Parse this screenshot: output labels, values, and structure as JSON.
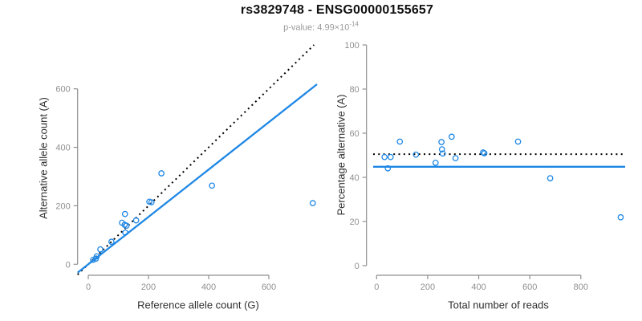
{
  "header": {
    "title": "rs3829748 - ENSG00000155657",
    "pvalue_label": "p-value: 4.99×10",
    "pvalue_exponent": "-14"
  },
  "colors": {
    "accent_blue": "#1E87E5",
    "line_black": "#000000",
    "axis_gray": "#8F8F8F",
    "tick_text_gray": "#909090",
    "axis_title_color": "#2E2E2E",
    "title_color": "#111111",
    "subtitle_gray": "#9B9B9B",
    "background": "#FFFFFF"
  },
  "chart_data": [
    {
      "type": "scatter",
      "panel": "left",
      "xlabel": "Reference allele count (G)",
      "ylabel": "Alternative allele count (A)",
      "xticks": [
        0,
        200,
        400,
        600
      ],
      "yticks": [
        0,
        200,
        400,
        600
      ],
      "xlim": [
        0,
        600
      ],
      "ylim": [
        0,
        600
      ],
      "grid": false,
      "legend": "none",
      "points": [
        [
          16,
          15
        ],
        [
          25,
          19
        ],
        [
          28,
          27
        ],
        [
          40,
          51
        ],
        [
          77,
          77
        ],
        [
          123,
          108
        ],
        [
          112,
          142
        ],
        [
          121,
          135
        ],
        [
          127,
          132
        ],
        [
          122,
          172
        ],
        [
          159,
          150
        ],
        [
          203,
          214
        ],
        [
          210,
          212
        ],
        [
          243,
          311
        ],
        [
          411,
          269
        ],
        [
          746,
          209
        ]
      ],
      "lines": [
        {
          "name": "identity-line",
          "style": "dotted",
          "color": "#000000",
          "slope": 1,
          "intercept": 0
        },
        {
          "name": "fit-line",
          "style": "solid",
          "color": "#1E87E5",
          "slope": 0.81,
          "intercept": 0
        }
      ]
    },
    {
      "type": "scatter",
      "panel": "right",
      "xlabel": "Total number of reads",
      "ylabel": "Percentage alternative (A)",
      "xticks": [
        0,
        200,
        400,
        600,
        800
      ],
      "yticks": [
        0,
        20,
        40,
        60,
        80,
        100
      ],
      "xlim": [
        0,
        800
      ],
      "ylim": [
        0,
        100
      ],
      "grid": false,
      "legend": "none",
      "points": [
        [
          31,
          49.2
        ],
        [
          44,
          44.1
        ],
        [
          55,
          49.2
        ],
        [
          91,
          56.2
        ],
        [
          154,
          50.3
        ],
        [
          231,
          46.6
        ],
        [
          254,
          56
        ],
        [
          256,
          52.7
        ],
        [
          259,
          50.8
        ],
        [
          294,
          58.4
        ],
        [
          309,
          48.7
        ],
        [
          417,
          51.3
        ],
        [
          422,
          50.9
        ],
        [
          554,
          56.2
        ],
        [
          680,
          39.6
        ],
        [
          956,
          21.9
        ]
      ],
      "lines": [
        {
          "name": "expected-line",
          "style": "dotted",
          "color": "#000000",
          "y": 50.5
        },
        {
          "name": "observed-line",
          "style": "solid",
          "color": "#1E87E5",
          "y": 44.8
        }
      ]
    }
  ]
}
